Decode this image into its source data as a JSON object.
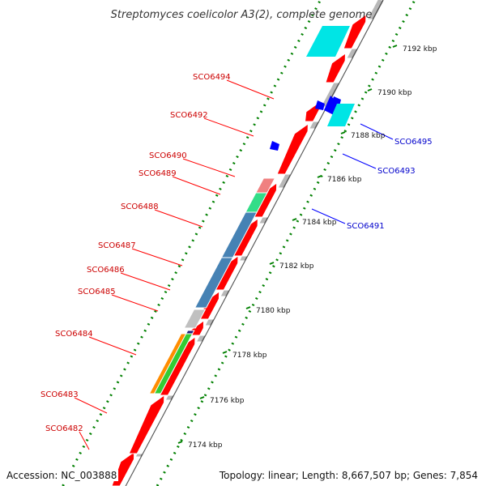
{
  "title": "Streptomyces coelicolor A3(2), complete genome",
  "footer": {
    "accession": "Accession: NC_003888",
    "topology": "Topology: linear; Length: 8,667,507 bp; Genes: 7,854"
  },
  "colors": {
    "forward_gene": "#ff0000",
    "reverse_gene": "#0000ff",
    "forward_label": "#cc0000",
    "reverse_label": "#0000cc",
    "tick_marks": "#008000",
    "backbone": "#888888"
  },
  "ticks": [
    "7174 kbp",
    "7176 kbp",
    "7178 kbp",
    "7180 kbp",
    "7182 kbp",
    "7184 kbp",
    "7186 kbp",
    "7188 kbp",
    "7190 kbp",
    "7192 kbp"
  ],
  "genes_forward": [
    "SCO6482",
    "SCO6483",
    "SCO6484",
    "SCO6485",
    "SCO6486",
    "SCO6487",
    "SCO6488",
    "SCO6489",
    "SCO6490",
    "SCO6492",
    "SCO6494"
  ],
  "genes_reverse": [
    "SCO6491",
    "SCO6493",
    "SCO6495"
  ]
}
